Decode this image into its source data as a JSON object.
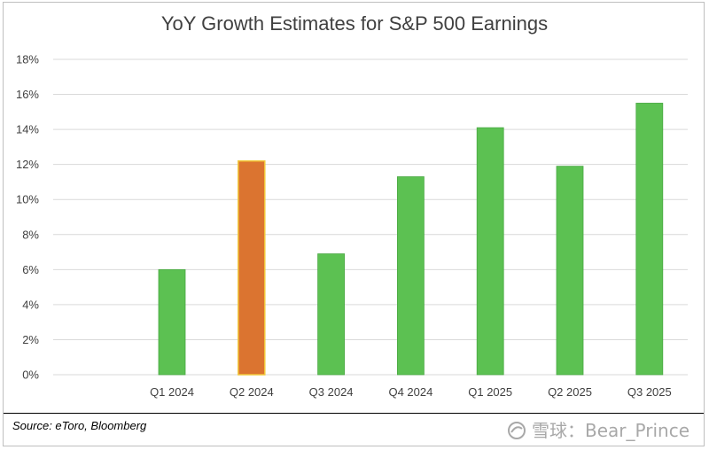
{
  "chart_data": {
    "type": "bar",
    "title": "YoY Growth Estimates for S&P 500 Earnings",
    "categories": [
      "Q1 2024",
      "Q2 2024",
      "Q3 2024",
      "Q4 2024",
      "Q1 2025",
      "Q2 2025",
      "Q3 2025"
    ],
    "values": [
      6.0,
      12.2,
      6.9,
      11.3,
      14.1,
      11.9,
      15.5
    ],
    "ylim": [
      0,
      18
    ],
    "yticks": [
      "0%",
      "2%",
      "4%",
      "6%",
      "8%",
      "10%",
      "12%",
      "14%",
      "16%",
      "18%"
    ],
    "ytick_values": [
      0,
      2,
      4,
      6,
      8,
      10,
      12,
      14,
      16,
      18
    ],
    "grid": true,
    "colors": {
      "default": "#5cc152",
      "default_edge": "#4aa843",
      "highlight": "#db7430",
      "highlight_edge": "#f2c83a"
    },
    "highlight_index": 1
  },
  "source": "Source: eToro, Bloomberg",
  "watermark": "雪球：Bear_Prince"
}
